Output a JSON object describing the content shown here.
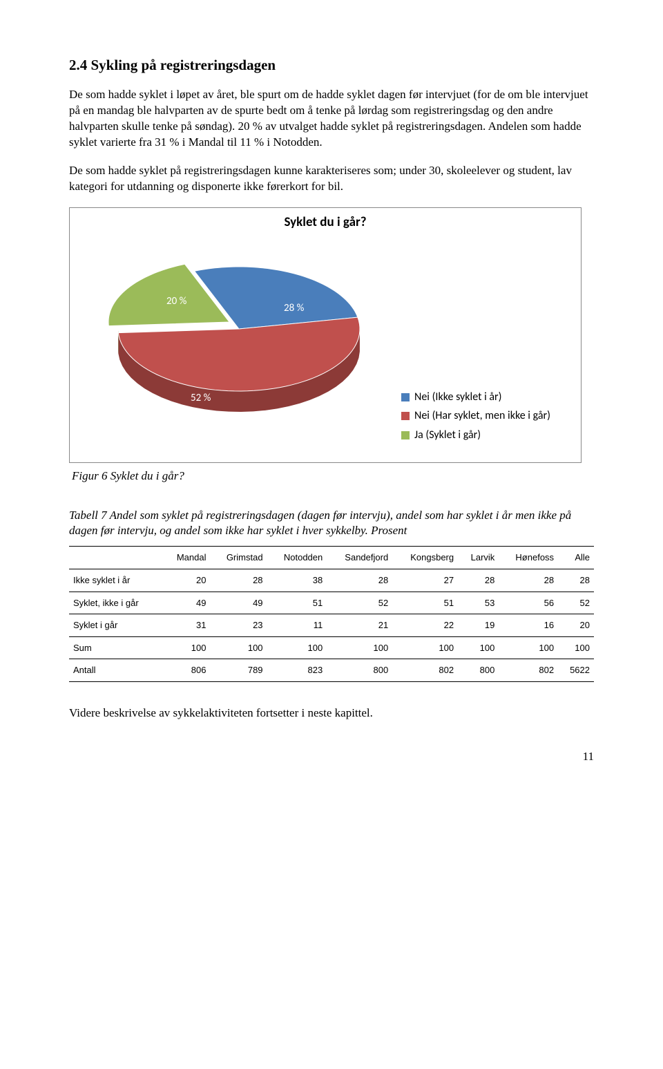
{
  "heading": "2.4 Sykling på registreringsdagen",
  "para1": "De som hadde syklet i løpet av året, ble spurt om de hadde syklet dagen før intervjuet (for de om ble intervjuet på en mandag ble halvparten av de spurte bedt om å tenke på lørdag som registreringsdag og den andre halvparten skulle tenke på søndag). 20 % av utvalget hadde syklet på registreringsdagen. Andelen som hadde syklet varierte fra 31 % i Mandal til 11 % i Notodden.",
  "para2": "De som hadde syklet på registreringsdagen kunne karakteriseres som; under 30, skoleelever og student, lav kategori for utdanning og disponerte ikke førerkort for bil.",
  "chart": {
    "title": "Syklet du i går?",
    "slices": [
      {
        "label": "Nei (Ikke syklet i år)",
        "value": 28,
        "pct": "28 %",
        "color": "#4a7ebb"
      },
      {
        "label": "Nei (Har syklet, men ikke i går)",
        "value": 52,
        "pct": "52 %",
        "color": "#c0504d"
      },
      {
        "label": "Ja (Syklet i går)",
        "value": 20,
        "pct": "20 %",
        "color": "#9bbb59"
      }
    ],
    "side_colors": [
      "#355b89",
      "#8c3a37",
      "#718840"
    ],
    "depth": 30
  },
  "fig_caption": "Figur 6 Syklet du i går?",
  "table_caption": "Tabell 7 Andel som syklet på registreringsdagen (dagen før intervju), andel som har syklet i år men ikke på dagen før intervju, og andel som ikke har syklet i hver sykkelby. Prosent",
  "table": {
    "columns": [
      "",
      "Mandal",
      "Grimstad",
      "Notodden",
      "Sandefjord",
      "Kongsberg",
      "Larvik",
      "Hønefoss",
      "Alle"
    ],
    "rows": [
      [
        "Ikke syklet i år",
        "20",
        "28",
        "38",
        "28",
        "27",
        "28",
        "28",
        "28"
      ],
      [
        "Syklet, ikke i går",
        "49",
        "49",
        "51",
        "52",
        "51",
        "53",
        "56",
        "52"
      ],
      [
        "Syklet i går",
        "31",
        "23",
        "11",
        "21",
        "22",
        "19",
        "16",
        "20"
      ],
      [
        "Sum",
        "100",
        "100",
        "100",
        "100",
        "100",
        "100",
        "100",
        "100"
      ],
      [
        "Antall",
        "806",
        "789",
        "823",
        "800",
        "802",
        "800",
        "802",
        "5622"
      ]
    ]
  },
  "closing": "Videre beskrivelse av sykkelaktiviteten fortsetter i neste kapittel.",
  "page_number": "11"
}
